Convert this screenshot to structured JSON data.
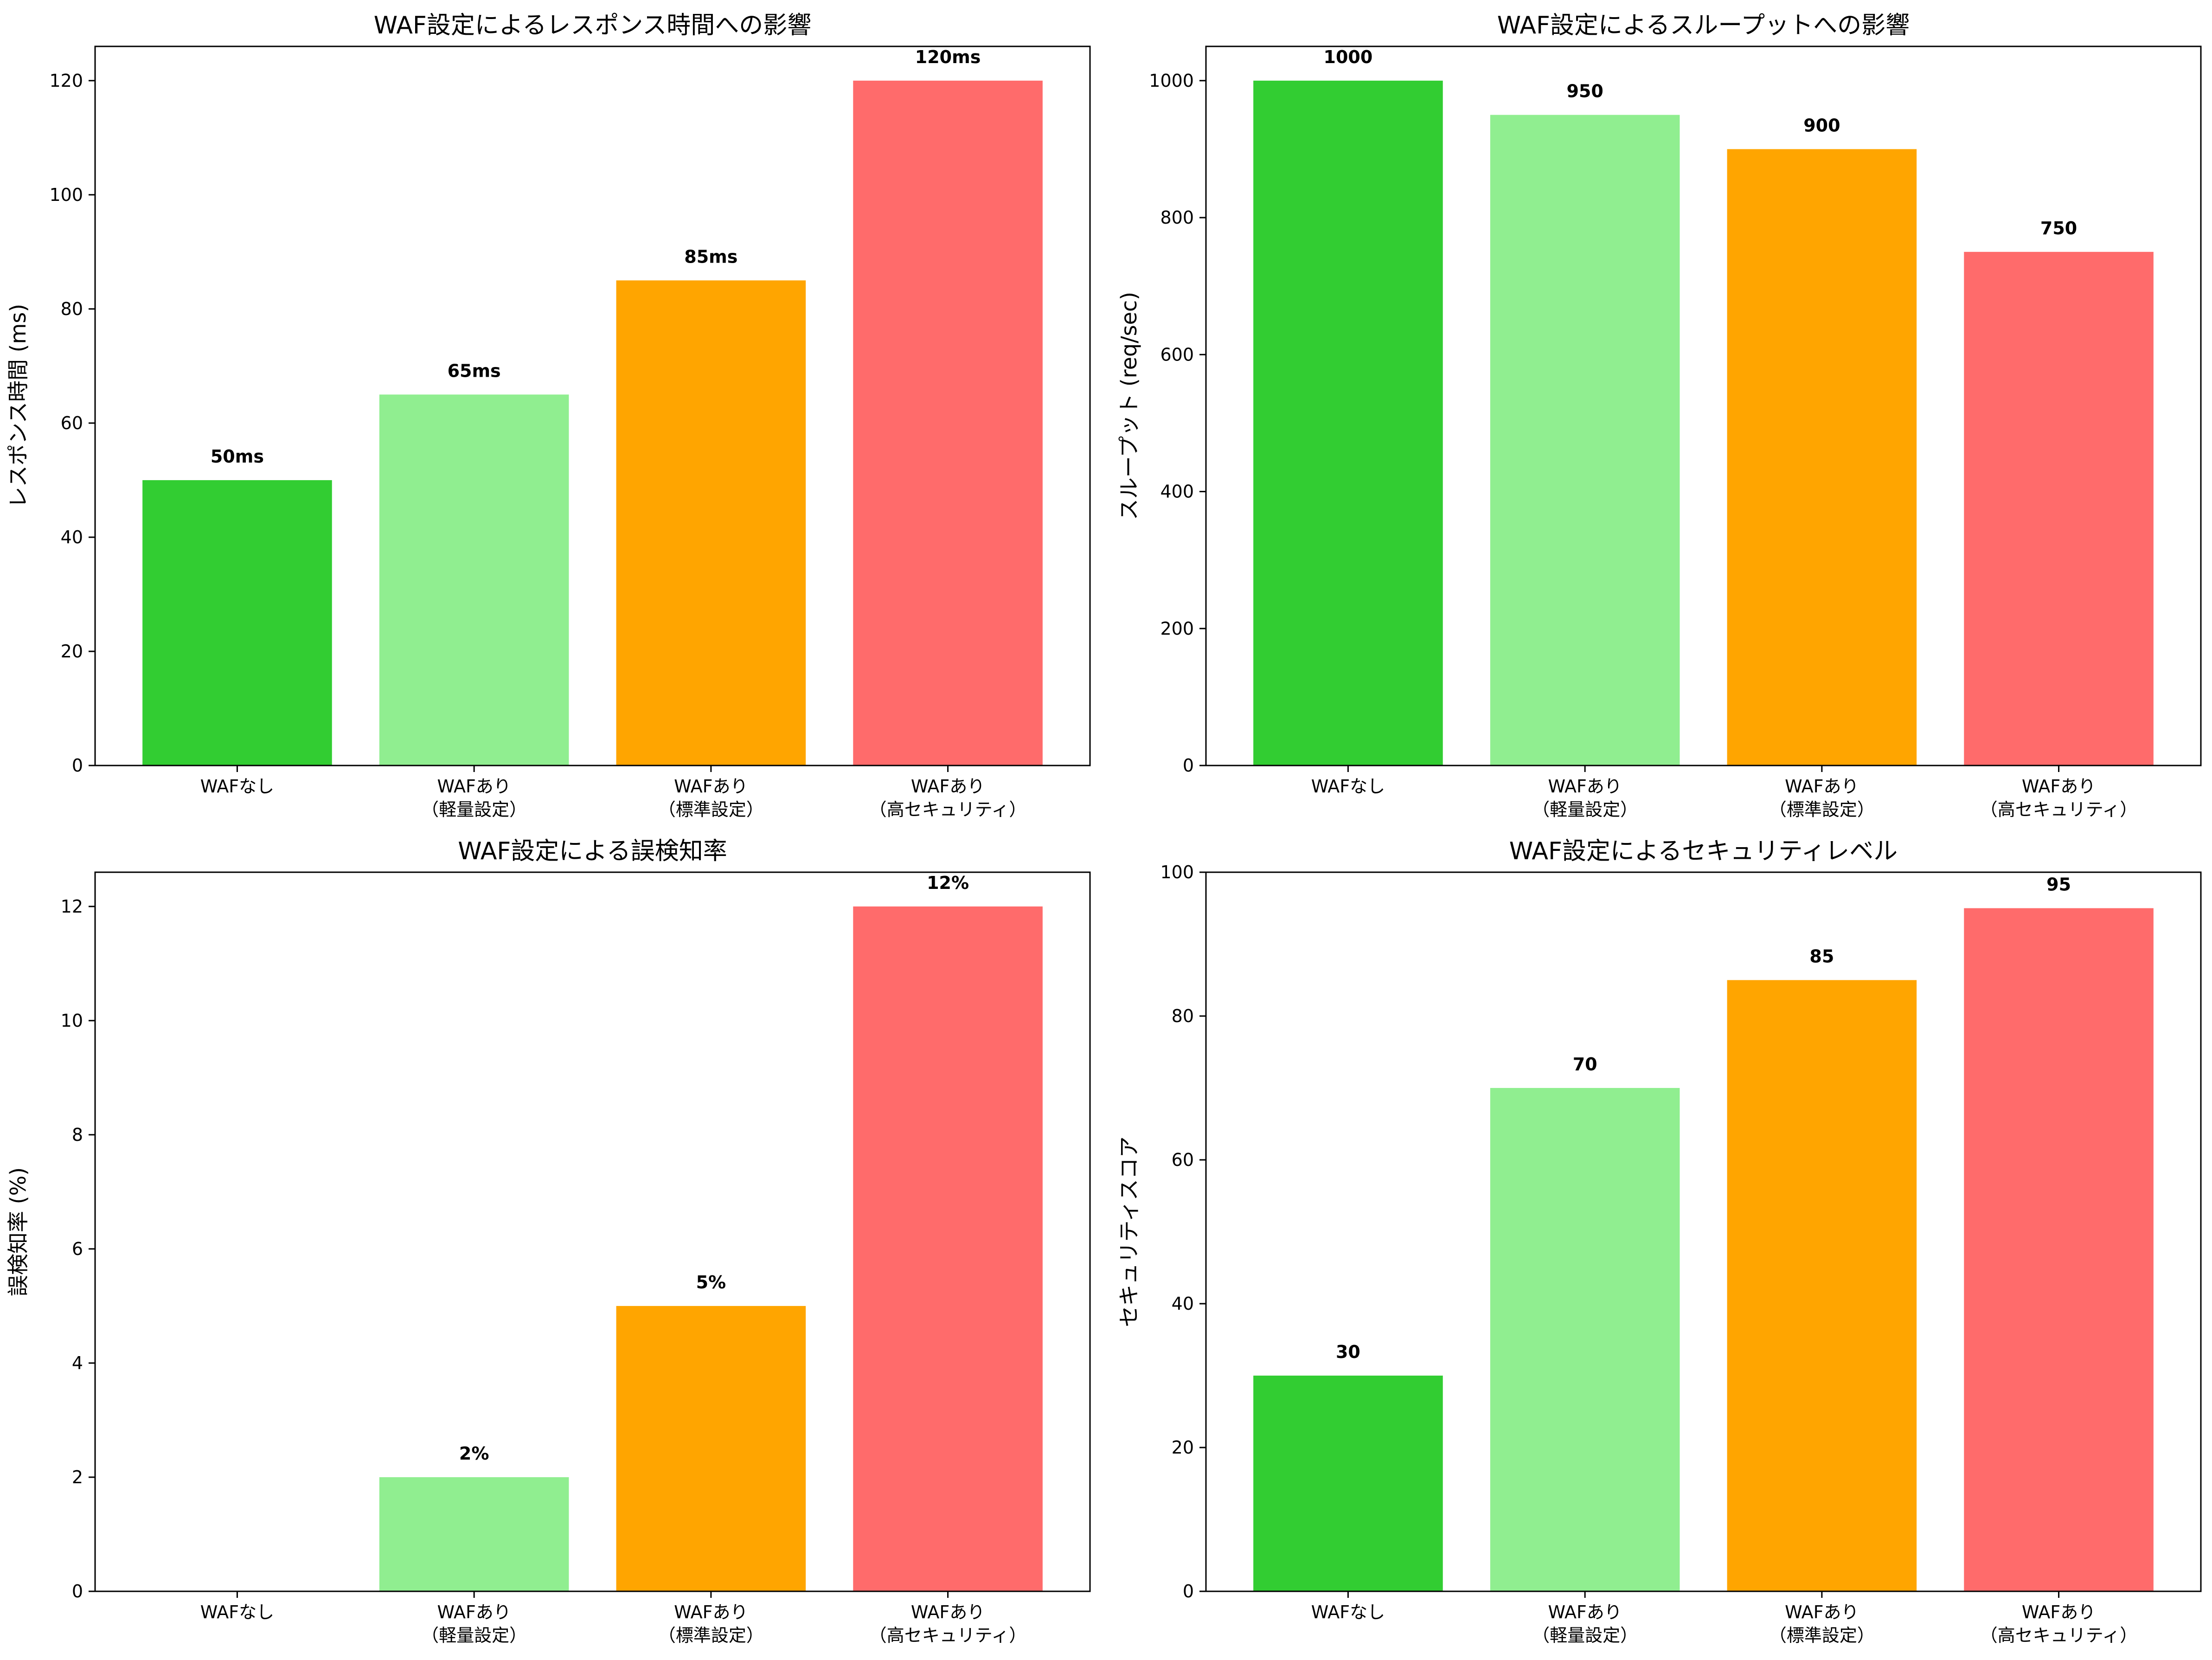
{
  "chart_data": [
    {
      "type": "bar",
      "title": "WAF設定によるレスポンス時間への影響",
      "xlabel": "",
      "ylabel": "レスポンス時間 (ms)",
      "categories": [
        "WAFなし",
        "WAFあり\n（軽量設定）",
        "WAFあり\n（標準設定）",
        "WAFあり\n（高セキュリティ）"
      ],
      "values": [
        50,
        65,
        85,
        120
      ],
      "value_labels": [
        "50ms",
        "65ms",
        "85ms",
        "120ms"
      ],
      "colors": [
        "#32cd32",
        "#90ee90",
        "#ffa500",
        "#ff6b6b"
      ],
      "ylim": [
        0,
        126
      ],
      "yticks": [
        0,
        20,
        40,
        60,
        80,
        100,
        120
      ],
      "grid": false
    },
    {
      "type": "bar",
      "title": "WAF設定によるスループットへの影響",
      "xlabel": "",
      "ylabel": "スループット (req/sec)",
      "categories": [
        "WAFなし",
        "WAFあり\n（軽量設定）",
        "WAFあり\n（標準設定）",
        "WAFあり\n（高セキュリティ）"
      ],
      "values": [
        1000,
        950,
        900,
        750
      ],
      "value_labels": [
        "1000",
        "950",
        "900",
        "750"
      ],
      "colors": [
        "#32cd32",
        "#90ee90",
        "#ffa500",
        "#ff6b6b"
      ],
      "ylim": [
        0,
        1050
      ],
      "yticks": [
        0,
        200,
        400,
        600,
        800,
        1000
      ],
      "grid": false
    },
    {
      "type": "bar",
      "title": "WAF設定による誤検知率",
      "xlabel": "",
      "ylabel": "誤検知率 (%)",
      "categories": [
        "WAFなし",
        "WAFあり\n（軽量設定）",
        "WAFあり\n（標準設定）",
        "WAFあり\n（高セキュリティ）"
      ],
      "values": [
        0,
        2,
        5,
        12
      ],
      "value_labels": [
        "",
        "2%",
        "5%",
        "12%"
      ],
      "colors": [
        "#32cd32",
        "#90ee90",
        "#ffa500",
        "#ff6b6b"
      ],
      "ylim": [
        0,
        12.6
      ],
      "yticks": [
        0,
        2,
        4,
        6,
        8,
        10,
        12
      ],
      "grid": false
    },
    {
      "type": "bar",
      "title": "WAF設定によるセキュリティレベル",
      "xlabel": "",
      "ylabel": "セキュリティスコア",
      "categories": [
        "WAFなし",
        "WAFあり\n（軽量設定）",
        "WAFあり\n（標準設定）",
        "WAFあり\n（高セキュリティ）"
      ],
      "values": [
        30,
        70,
        85,
        95
      ],
      "value_labels": [
        "30",
        "70",
        "85",
        "95"
      ],
      "colors": [
        "#32cd32",
        "#90ee90",
        "#ffa500",
        "#ff6b6b"
      ],
      "ylim": [
        0,
        100
      ],
      "yticks": [
        0,
        20,
        40,
        60,
        80,
        100
      ],
      "grid": false
    }
  ]
}
